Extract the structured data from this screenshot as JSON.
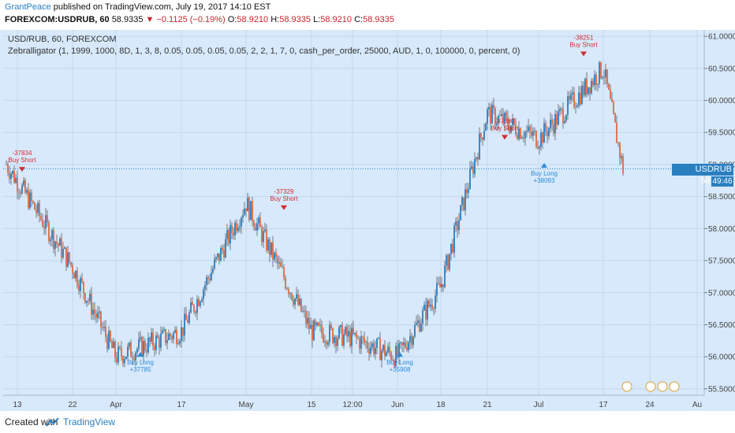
{
  "header": {
    "author": "GrantPeace",
    "published": " published on TradingView.com, July 19, 2017 14:10 EST",
    "symbol": "FOREXCOM:USDRUB, 60",
    "last": "58.9335",
    "change": "▼ −0.1125 (−0.19%)",
    "open_label": "O:",
    "open": "58.9210",
    "high_label": "H:",
    "high": "58.9335",
    "low_label": "L:",
    "low": "58.9210",
    "close_label": "C:",
    "close": "58.9335"
  },
  "pane": {
    "title": "USD/RUB, 60, FOREXCOM",
    "study": "Zebralligator (1, 1999, 1000, 8D, 1, 3, 8, 0.05, 0.05, 0.05, 0.05, 2, 2, 1, 7, 0, cash_per_order, 25000, AUD, 1, 0, 100000, 0, percent, 0)"
  },
  "price_label": {
    "symbol": "USDRUB",
    "value": "58.9335",
    "countdown": "49:46"
  },
  "colors": {
    "plot_bg": "#d7e9fb",
    "up": "#1a6fb5",
    "down": "#e05a2b",
    "long": "#2a8ad8",
    "short": "#d42b2b",
    "accent": "#2a7fc1"
  },
  "chart_data": {
    "type": "line",
    "y_axis_ticks": [
      "61.0000",
      "60.5000",
      "60.0000",
      "59.5000",
      "59.0000",
      "58.5000",
      "58.0000",
      "57.5000",
      "57.0000",
      "56.5000",
      "56.0000",
      "55.5000"
    ],
    "ylim": [
      55.4,
      61.1
    ],
    "x_axis_ticks": [
      "13",
      "22",
      "Apr",
      "17",
      "May",
      "15",
      "12:00",
      "Jun",
      "18",
      "21",
      "Jul",
      "17",
      "24",
      "Au"
    ],
    "x": [
      "13",
      "22",
      "Apr",
      "17",
      "May",
      "15",
      "12:00",
      "Jun",
      "18",
      "21",
      "Jul",
      "17",
      "24"
    ],
    "series": [
      {
        "values": [
          59.0,
          57.4,
          56.0,
          56.4,
          58.4,
          56.4,
          56.3,
          56.0,
          57.1,
          59.8,
          59.4,
          60.5,
          58.93
        ]
      }
    ],
    "annotations": [
      {
        "label": "Buy Short",
        "pnl": "-37834",
        "x": "13",
        "y": 58.9
      },
      {
        "label": "Buy Long",
        "pnl": "+37785",
        "x": "Apr",
        "y": 56.0
      },
      {
        "label": "Buy Short",
        "pnl": "-37329",
        "x": "May",
        "y": 58.3
      },
      {
        "label": "Buy Long",
        "pnl": "+35908",
        "x": "Jun",
        "y": 56.0
      },
      {
        "label": "Buy Short",
        "pnl": "-37380",
        "x": "21",
        "y": 59.4
      },
      {
        "label": "Buy Long",
        "pnl": "+38093",
        "x": "Jul",
        "y": 58.95
      },
      {
        "label": "Buy Short",
        "pnl": "-38251",
        "x": "Jul",
        "y": 60.7
      }
    ],
    "grid": true,
    "last_value": 58.9335
  },
  "footer": {
    "created": "Created with",
    "brand": "TradingView"
  }
}
